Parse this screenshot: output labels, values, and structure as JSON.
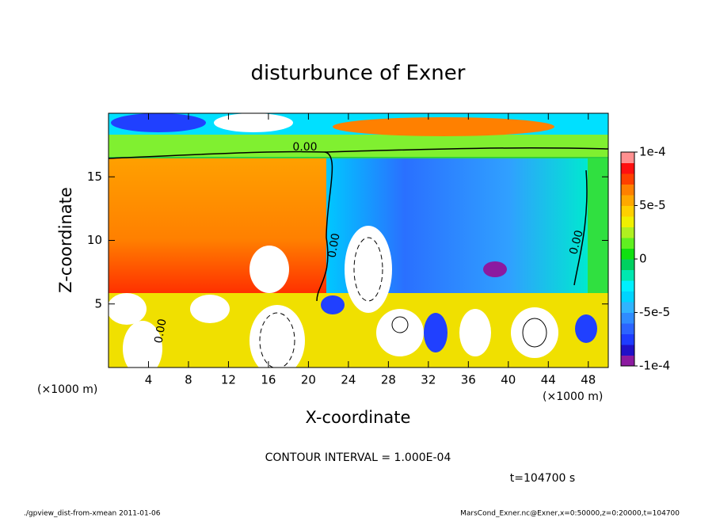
{
  "chart_data": {
    "type": "contour",
    "title": "disturbunce of Exner",
    "x_label": "X-coordinate",
    "y_label": "Z-coordinate",
    "x_unit_left": "(×1000 m)",
    "x_unit_right": "(×1000 m)",
    "xlim": [
      0,
      50
    ],
    "xticks": [
      4,
      8,
      12,
      16,
      20,
      24,
      28,
      32,
      36,
      40,
      44,
      48
    ],
    "ylim": [
      0,
      20
    ],
    "yticks": [
      5,
      10,
      15
    ],
    "colorbar_lim": [
      -0.0001,
      0.0001
    ],
    "colorbar_ticks": [
      {
        "value": 0.0001,
        "label": "1e-4"
      },
      {
        "value": 5e-05,
        "label": "5e-5"
      },
      0,
      {
        "value": -5e-05,
        "label": "-5e-5"
      },
      {
        "value": -0.0001,
        "label": "-1e-4"
      }
    ],
    "colorbar_colors": [
      "#8c1aa0",
      "#2010c8",
      "#1e3cff",
      "#2c64ff",
      "#2f8cff",
      "#30b4ff",
      "#00d4ff",
      "#00f0ff",
      "#00e8b0",
      "#00d060",
      "#10e010",
      "#60f020",
      "#b0f020",
      "#f0f000",
      "#ffd000",
      "#ffa800",
      "#ff8000",
      "#ff4000",
      "#ff1010",
      "#ff9090"
    ],
    "contour_labels": [
      "0.00",
      "0.00",
      "0.00",
      "0.00"
    ],
    "contour_interval": "CONTOUR INTERVAL = 1.000E-04",
    "time_label": "t=104700 s",
    "footer_left": "./gpview_dist-from-xmean  2011-01-06",
    "footer_right": "MarsCond_Exner.nc@Exner,x=0:50000,z=0:20000,t=104700"
  }
}
